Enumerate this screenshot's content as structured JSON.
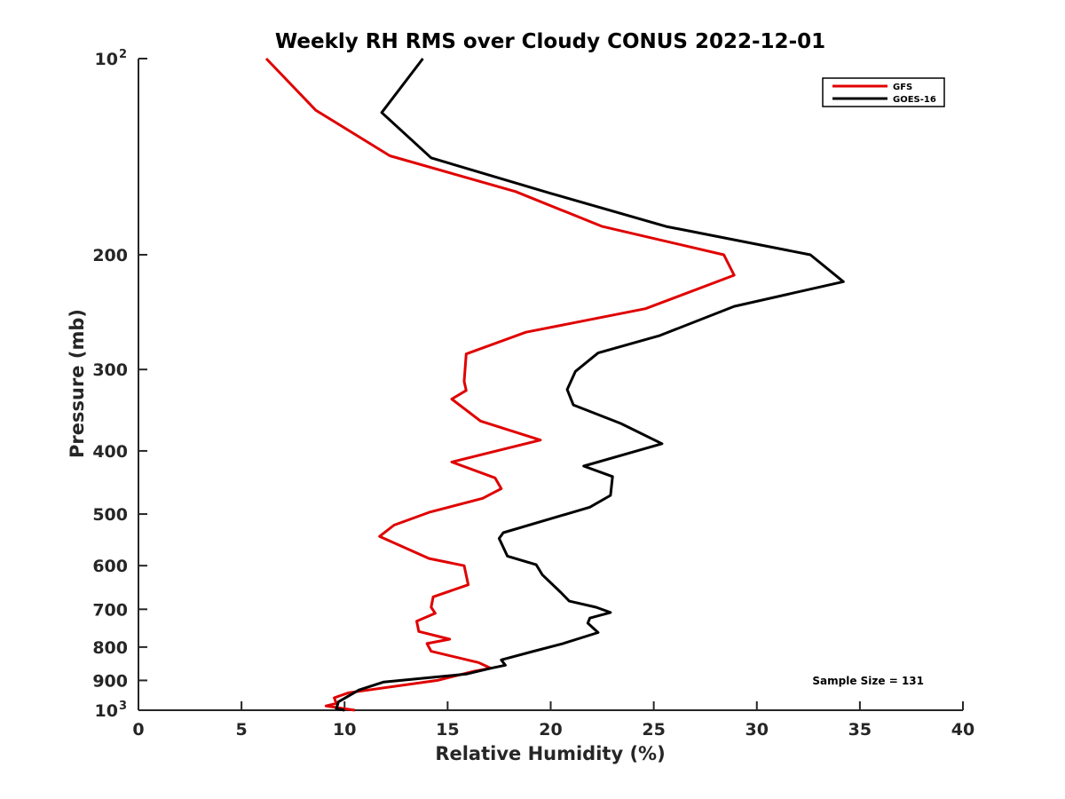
{
  "chart_data": {
    "type": "line",
    "title": "Weekly RH RMS over Cloudy CONUS 2022-12-01",
    "xlabel": "Relative Humidity (%)",
    "ylabel": "Pressure (mb)",
    "xlim": [
      0,
      40
    ],
    "ylim": [
      100,
      1000
    ],
    "y_scale": "log",
    "y_reversed": true,
    "grid": false,
    "legend_position": "top-right",
    "x_ticks": [
      0,
      5,
      10,
      15,
      20,
      25,
      30,
      35,
      40
    ],
    "y_ticks": [
      {
        "value": 100,
        "label": "10",
        "sup": "2"
      },
      {
        "value": 200,
        "label": "200"
      },
      {
        "value": 300,
        "label": "300"
      },
      {
        "value": 400,
        "label": "400"
      },
      {
        "value": 500,
        "label": "500"
      },
      {
        "value": 600,
        "label": "600"
      },
      {
        "value": 700,
        "label": "700"
      },
      {
        "value": 800,
        "label": "800"
      },
      {
        "value": 900,
        "label": "900"
      },
      {
        "value": 1000,
        "label": "10",
        "sup": "3"
      }
    ],
    "annotation": "Sample Size = 131",
    "series": [
      {
        "name": "GFS",
        "color": "#e00000",
        "points": [
          [
            6.2,
            100
          ],
          [
            8.6,
            120
          ],
          [
            12.2,
            141
          ],
          [
            18.3,
            160
          ],
          [
            22.5,
            181
          ],
          [
            28.4,
            200
          ],
          [
            28.9,
            215
          ],
          [
            24.6,
            242
          ],
          [
            18.8,
            263
          ],
          [
            15.9,
            284
          ],
          [
            15.8,
            313
          ],
          [
            15.9,
            323
          ],
          [
            15.2,
            333
          ],
          [
            16.6,
            360
          ],
          [
            19.5,
            385
          ],
          [
            15.2,
            416
          ],
          [
            17.3,
            440
          ],
          [
            17.6,
            457
          ],
          [
            16.7,
            473
          ],
          [
            14.1,
            497
          ],
          [
            12.4,
            520
          ],
          [
            11.7,
            541
          ],
          [
            14.1,
            585
          ],
          [
            15.8,
            600
          ],
          [
            16.0,
            642
          ],
          [
            14.3,
            670
          ],
          [
            14.2,
            695
          ],
          [
            14.4,
            710
          ],
          [
            13.5,
            730
          ],
          [
            13.6,
            757
          ],
          [
            15.1,
            778
          ],
          [
            14.0,
            790
          ],
          [
            14.2,
            812
          ],
          [
            16.5,
            845
          ],
          [
            17.1,
            862
          ],
          [
            16.3,
            871
          ],
          [
            14.5,
            900
          ],
          [
            10.2,
            940
          ],
          [
            9.5,
            957
          ],
          [
            9.6,
            976
          ],
          [
            9.1,
            985
          ],
          [
            10.5,
            1000
          ]
        ]
      },
      {
        "name": "GOES-16",
        "color": "#000000",
        "points": [
          [
            13.8,
            100
          ],
          [
            11.8,
            121
          ],
          [
            14.2,
            142
          ],
          [
            20.0,
            161
          ],
          [
            25.6,
            181
          ],
          [
            32.6,
            200
          ],
          [
            34.2,
            220
          ],
          [
            28.9,
            240
          ],
          [
            25.3,
            266
          ],
          [
            22.3,
            283
          ],
          [
            21.2,
            302
          ],
          [
            20.8,
            322
          ],
          [
            21.1,
            340
          ],
          [
            23.4,
            363
          ],
          [
            25.4,
            390
          ],
          [
            21.6,
            422
          ],
          [
            23.0,
            438
          ],
          [
            22.9,
            468
          ],
          [
            21.9,
            488
          ],
          [
            17.7,
            534
          ],
          [
            17.5,
            545
          ],
          [
            17.9,
            580
          ],
          [
            19.3,
            598
          ],
          [
            19.6,
            620
          ],
          [
            20.5,
            660
          ],
          [
            20.9,
            680
          ],
          [
            22.2,
            695
          ],
          [
            22.9,
            708
          ],
          [
            21.9,
            722
          ],
          [
            21.8,
            735
          ],
          [
            22.3,
            760
          ],
          [
            20.6,
            790
          ],
          [
            19.1,
            813
          ],
          [
            17.6,
            837
          ],
          [
            17.8,
            853
          ],
          [
            17.1,
            862
          ],
          [
            15.9,
            880
          ],
          [
            11.9,
            905
          ],
          [
            10.7,
            931
          ],
          [
            9.7,
            971
          ],
          [
            9.6,
            995
          ],
          [
            10.0,
            1000
          ]
        ]
      }
    ]
  }
}
